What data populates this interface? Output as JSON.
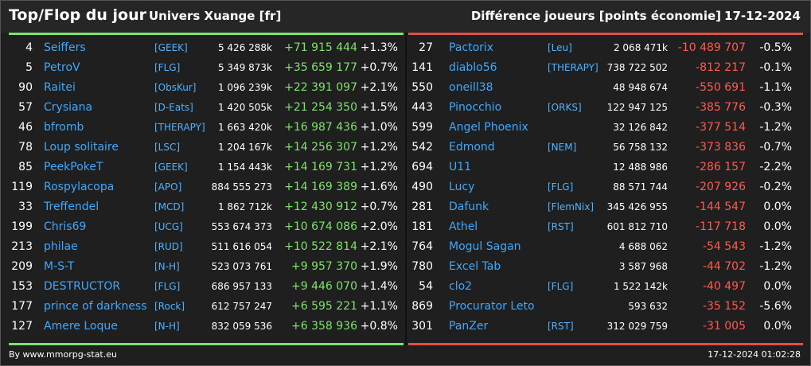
{
  "header": {
    "title": "Top/Flop du jour",
    "server": "Univers Xuange [fr]",
    "difference": "Différence joueurs [points économie]",
    "date": "17-12-2024"
  },
  "colors": {
    "up": "#7ee36a",
    "down": "#ff5a50",
    "name": "#3fa8ff"
  },
  "top": [
    {
      "rank": "4",
      "name": "Seiffers",
      "alliance": "[GEEK]",
      "score": "5 426 288k",
      "diff": "+71 915 444",
      "pct": "+1.3%"
    },
    {
      "rank": "5",
      "name": "PetroV",
      "alliance": "[FLG]",
      "score": "5 349 873k",
      "diff": "+35 659 177",
      "pct": "+0.7%"
    },
    {
      "rank": "90",
      "name": "Raitei",
      "alliance": "[ObsKur]",
      "score": "1 096 239k",
      "diff": "+22 391 097",
      "pct": "+2.1%"
    },
    {
      "rank": "57",
      "name": "Crysiana",
      "alliance": "[D-Eats]",
      "score": "1 420 505k",
      "diff": "+21 254 350",
      "pct": "+1.5%"
    },
    {
      "rank": "46",
      "name": "bfromb",
      "alliance": "[THERAPY]",
      "score": "1 663 420k",
      "diff": "+16 987 436",
      "pct": "+1.0%"
    },
    {
      "rank": "78",
      "name": "Loup solitaire",
      "alliance": "[LSC]",
      "score": "1 204 167k",
      "diff": "+14 256 307",
      "pct": "+1.2%"
    },
    {
      "rank": "85",
      "name": "PeekPokeT",
      "alliance": "[GEEK]",
      "score": "1 154 443k",
      "diff": "+14 169 731",
      "pct": "+1.2%"
    },
    {
      "rank": "119",
      "name": "Rospylacopa",
      "alliance": "[APO]",
      "score": "884 555 273",
      "diff": "+14 169 389",
      "pct": "+1.6%"
    },
    {
      "rank": "33",
      "name": "Treffendel",
      "alliance": "[MCD]",
      "score": "1 862 712k",
      "diff": "+12 430 912",
      "pct": "+0.7%"
    },
    {
      "rank": "199",
      "name": "Chris69",
      "alliance": "[UCG]",
      "score": "553 674 373",
      "diff": "+10 674 086",
      "pct": "+2.0%"
    },
    {
      "rank": "213",
      "name": "philae",
      "alliance": "[RUD]",
      "score": "511 616 054",
      "diff": "+10 522 814",
      "pct": "+2.1%"
    },
    {
      "rank": "209",
      "name": "M-S-T",
      "alliance": "[N-H]",
      "score": "523 073 761",
      "diff": "+9 957 370",
      "pct": "+1.9%"
    },
    {
      "rank": "153",
      "name": "DESTRUCTOR",
      "alliance": "[FLG]",
      "score": "686 957 133",
      "diff": "+9 446 070",
      "pct": "+1.4%"
    },
    {
      "rank": "177",
      "name": "prince of darkness",
      "alliance": "[Rock]",
      "score": "612 757 247",
      "diff": "+6 595 221",
      "pct": "+1.1%"
    },
    {
      "rank": "127",
      "name": "Amere Loque",
      "alliance": "[N-H]",
      "score": "832 059 536",
      "diff": "+6 358 936",
      "pct": "+0.8%"
    }
  ],
  "flop": [
    {
      "rank": "27",
      "name": "Pactorix",
      "alliance": "[Leu]",
      "score": "2 068 471k",
      "diff": "-10 489 707",
      "pct": "-0.5%"
    },
    {
      "rank": "141",
      "name": "diablo56",
      "alliance": "[THERAPY]",
      "score": "738 722 502",
      "diff": "-812 217",
      "pct": "-0.1%"
    },
    {
      "rank": "550",
      "name": "oneill38",
      "alliance": "",
      "score": "48 948 674",
      "diff": "-550 691",
      "pct": "-1.1%"
    },
    {
      "rank": "443",
      "name": "Pinocchio",
      "alliance": "[ORKS]",
      "score": "122 947 125",
      "diff": "-385 776",
      "pct": "-0.3%"
    },
    {
      "rank": "599",
      "name": "Angel Phoenix",
      "alliance": "",
      "score": "32 126 842",
      "diff": "-377 514",
      "pct": "-1.2%"
    },
    {
      "rank": "542",
      "name": "Edmond",
      "alliance": "[NEM]",
      "score": "56 758 132",
      "diff": "-373 836",
      "pct": "-0.7%"
    },
    {
      "rank": "694",
      "name": "U11",
      "alliance": "",
      "score": "12 488 986",
      "diff": "-286 157",
      "pct": "-2.2%"
    },
    {
      "rank": "490",
      "name": "Lucy",
      "alliance": "[FLG]",
      "score": "88 571 744",
      "diff": "-207 926",
      "pct": "-0.2%"
    },
    {
      "rank": "281",
      "name": "Dafunk",
      "alliance": "[FlemNix]",
      "score": "345 426 955",
      "diff": "-144 547",
      "pct": "0.0%"
    },
    {
      "rank": "181",
      "name": "Athel",
      "alliance": "[RST]",
      "score": "601 812 710",
      "diff": "-117 718",
      "pct": "0.0%"
    },
    {
      "rank": "764",
      "name": "Mogul Sagan",
      "alliance": "",
      "score": "4 688 062",
      "diff": "-54 543",
      "pct": "-1.2%"
    },
    {
      "rank": "780",
      "name": "Excel Tab",
      "alliance": "",
      "score": "3 587 968",
      "diff": "-44 702",
      "pct": "-1.2%"
    },
    {
      "rank": "54",
      "name": "clo2",
      "alliance": "[FLG]",
      "score": "1 522 142k",
      "diff": "-40 497",
      "pct": "0.0%"
    },
    {
      "rank": "869",
      "name": "Procurator Leto",
      "alliance": "",
      "score": "593 632",
      "diff": "-35 152",
      "pct": "-5.6%"
    },
    {
      "rank": "301",
      "name": "PanZer",
      "alliance": "[RST]",
      "score": "312 029 759",
      "diff": "-31 005",
      "pct": "0.0%"
    }
  ],
  "footer": {
    "source": "By www.mmorpg-stat.eu",
    "timestamp": "17-12-2024 01:02:28"
  }
}
